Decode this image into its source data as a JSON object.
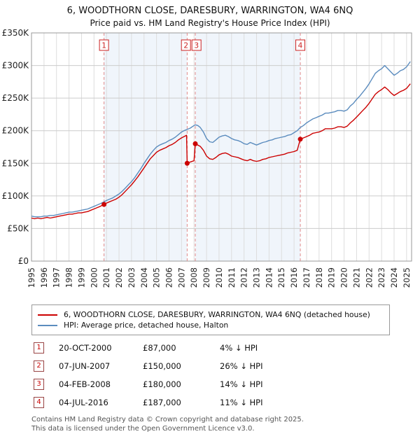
{
  "title": "6, WOODTHORN CLOSE, DARESBURY, WARRINGTON, WA4 6NQ",
  "subtitle": "Price paid vs. HM Land Registry's House Price Index (HPI)",
  "legend": [
    {
      "label": "6, WOODTHORN CLOSE, DARESBURY, WARRINGTON, WA4 6NQ (detached house)"
    },
    {
      "label": "HPI: Average price, detached house, Halton"
    }
  ],
  "footer": [
    "Contains HM Land Registry data © Crown copyright and database right 2025.",
    "This data is licensed under the Open Government Licence v3.0."
  ],
  "chart_data": {
    "type": "line",
    "units": "GBP thousands",
    "x_range": [
      1995,
      2025.4
    ],
    "ylim": [
      0,
      350
    ],
    "y_tick_values": [
      0,
      50,
      100,
      150,
      200,
      250,
      300,
      350
    ],
    "y_tick_labels": [
      "£0",
      "£50K",
      "£100K",
      "£150K",
      "£200K",
      "£250K",
      "£300K",
      "£350K"
    ],
    "x_ticks": [
      1995,
      1996,
      1997,
      1998,
      1999,
      2000,
      2001,
      2002,
      2003,
      2004,
      2005,
      2006,
      2007,
      2008,
      2009,
      2010,
      2011,
      2012,
      2013,
      2014,
      2015,
      2016,
      2017,
      2018,
      2019,
      2020,
      2021,
      2022,
      2023,
      2024,
      2025
    ],
    "grid": true,
    "band_color": "#e8eff9",
    "bands": [
      [
        2000.8,
        2007.45
      ],
      [
        2008.1,
        2016.5
      ]
    ],
    "series": [
      {
        "name": "HPI: Average price, detached house, Halton",
        "color": "#5b8cbe",
        "points": [
          [
            1995,
            69
          ],
          [
            1995.25,
            68
          ],
          [
            1995.5,
            68
          ],
          [
            1995.75,
            68
          ],
          [
            1996,
            69
          ],
          [
            1996.25,
            69
          ],
          [
            1996.5,
            70
          ],
          [
            1996.75,
            70
          ],
          [
            1997,
            71
          ],
          [
            1997.25,
            72
          ],
          [
            1997.5,
            73
          ],
          [
            1997.75,
            74
          ],
          [
            1998,
            75
          ],
          [
            1998.25,
            75
          ],
          [
            1998.5,
            76
          ],
          [
            1998.75,
            77
          ],
          [
            1999,
            78
          ],
          [
            1999.25,
            79
          ],
          [
            1999.5,
            80
          ],
          [
            1999.75,
            82
          ],
          [
            2000,
            84
          ],
          [
            2000.25,
            86
          ],
          [
            2000.5,
            88
          ],
          [
            2000.8,
            91
          ],
          [
            2001,
            93
          ],
          [
            2001.25,
            95
          ],
          [
            2001.5,
            97
          ],
          [
            2001.75,
            100
          ],
          [
            2002,
            103
          ],
          [
            2002.25,
            107
          ],
          [
            2002.5,
            112
          ],
          [
            2002.75,
            117
          ],
          [
            2003,
            122
          ],
          [
            2003.25,
            128
          ],
          [
            2003.5,
            135
          ],
          [
            2003.75,
            142
          ],
          [
            2004,
            150
          ],
          [
            2004.25,
            157
          ],
          [
            2004.5,
            164
          ],
          [
            2004.75,
            170
          ],
          [
            2005,
            175
          ],
          [
            2005.25,
            178
          ],
          [
            2005.5,
            180
          ],
          [
            2005.75,
            182
          ],
          [
            2006,
            185
          ],
          [
            2006.25,
            187
          ],
          [
            2006.5,
            190
          ],
          [
            2006.75,
            194
          ],
          [
            2007,
            198
          ],
          [
            2007.2,
            200
          ],
          [
            2007.45,
            202
          ],
          [
            2007.7,
            204
          ],
          [
            2008,
            208
          ],
          [
            2008.1,
            209
          ],
          [
            2008.3,
            208
          ],
          [
            2008.5,
            205
          ],
          [
            2008.75,
            198
          ],
          [
            2009,
            188
          ],
          [
            2009.25,
            183
          ],
          [
            2009.5,
            182
          ],
          [
            2009.75,
            186
          ],
          [
            2010,
            190
          ],
          [
            2010.25,
            192
          ],
          [
            2010.5,
            193
          ],
          [
            2010.75,
            191
          ],
          [
            2011,
            188
          ],
          [
            2011.25,
            186
          ],
          [
            2011.5,
            185
          ],
          [
            2011.75,
            183
          ],
          [
            2012,
            180
          ],
          [
            2012.25,
            179
          ],
          [
            2012.5,
            182
          ],
          [
            2012.75,
            180
          ],
          [
            2013,
            178
          ],
          [
            2013.25,
            180
          ],
          [
            2013.5,
            182
          ],
          [
            2013.75,
            183
          ],
          [
            2014,
            185
          ],
          [
            2014.25,
            186
          ],
          [
            2014.5,
            188
          ],
          [
            2014.75,
            189
          ],
          [
            2015,
            190
          ],
          [
            2015.25,
            191
          ],
          [
            2015.5,
            193
          ],
          [
            2015.75,
            194
          ],
          [
            2016,
            197
          ],
          [
            2016.25,
            200
          ],
          [
            2016.5,
            205
          ],
          [
            2016.75,
            208
          ],
          [
            2017,
            212
          ],
          [
            2017.25,
            215
          ],
          [
            2017.5,
            218
          ],
          [
            2017.75,
            220
          ],
          [
            2018,
            222
          ],
          [
            2018.25,
            224
          ],
          [
            2018.5,
            227
          ],
          [
            2018.75,
            227
          ],
          [
            2019,
            228
          ],
          [
            2019.25,
            229
          ],
          [
            2019.5,
            231
          ],
          [
            2019.75,
            231
          ],
          [
            2020,
            230
          ],
          [
            2020.25,
            232
          ],
          [
            2020.5,
            238
          ],
          [
            2020.75,
            242
          ],
          [
            2021,
            248
          ],
          [
            2021.25,
            253
          ],
          [
            2021.5,
            259
          ],
          [
            2021.75,
            265
          ],
          [
            2022,
            272
          ],
          [
            2022.25,
            280
          ],
          [
            2022.5,
            288
          ],
          [
            2022.75,
            292
          ],
          [
            2023,
            295
          ],
          [
            2023.25,
            300
          ],
          [
            2023.5,
            295
          ],
          [
            2023.75,
            290
          ],
          [
            2024,
            285
          ],
          [
            2024.25,
            288
          ],
          [
            2024.5,
            292
          ],
          [
            2024.75,
            294
          ],
          [
            2025,
            298
          ],
          [
            2025.3,
            306
          ]
        ]
      },
      {
        "name": "6, WOODTHORN CLOSE, DARESBURY, WARRINGTON, WA4 6NQ (detached house)",
        "color": "#cc0000",
        "points": [
          [
            1995,
            66
          ],
          [
            1995.25,
            65
          ],
          [
            1995.5,
            66
          ],
          [
            1995.75,
            65
          ],
          [
            1996,
            66
          ],
          [
            1996.25,
            67
          ],
          [
            1996.5,
            66
          ],
          [
            1996.75,
            67
          ],
          [
            1997,
            68
          ],
          [
            1997.25,
            69
          ],
          [
            1997.5,
            70
          ],
          [
            1997.75,
            71
          ],
          [
            1998,
            72
          ],
          [
            1998.25,
            72
          ],
          [
            1998.5,
            73
          ],
          [
            1998.75,
            74
          ],
          [
            1999,
            74
          ],
          [
            1999.25,
            75
          ],
          [
            1999.5,
            76
          ],
          [
            1999.75,
            78
          ],
          [
            2000,
            80
          ],
          [
            2000.25,
            82
          ],
          [
            2000.5,
            84
          ],
          [
            2000.8,
            87
          ],
          [
            2001,
            89
          ],
          [
            2001.25,
            91
          ],
          [
            2001.5,
            93
          ],
          [
            2001.75,
            95
          ],
          [
            2002,
            98
          ],
          [
            2002.25,
            102
          ],
          [
            2002.5,
            107
          ],
          [
            2002.75,
            112
          ],
          [
            2003,
            117
          ],
          [
            2003.25,
            123
          ],
          [
            2003.5,
            129
          ],
          [
            2003.75,
            136
          ],
          [
            2004,
            143
          ],
          [
            2004.25,
            150
          ],
          [
            2004.5,
            157
          ],
          [
            2004.75,
            162
          ],
          [
            2005,
            167
          ],
          [
            2005.25,
            170
          ],
          [
            2005.5,
            172
          ],
          [
            2005.75,
            174
          ],
          [
            2006,
            177
          ],
          [
            2006.25,
            179
          ],
          [
            2006.5,
            182
          ],
          [
            2006.75,
            186
          ],
          [
            2007,
            189
          ],
          [
            2007.2,
            191
          ],
          [
            2007.4,
            193
          ],
          [
            2007.45,
            150
          ],
          [
            2007.7,
            152
          ],
          [
            2008,
            154
          ],
          [
            2008.1,
            180
          ],
          [
            2008.3,
            178
          ],
          [
            2008.5,
            176
          ],
          [
            2008.75,
            170
          ],
          [
            2009,
            161
          ],
          [
            2009.25,
            157
          ],
          [
            2009.5,
            156
          ],
          [
            2009.75,
            159
          ],
          [
            2010,
            163
          ],
          [
            2010.25,
            165
          ],
          [
            2010.5,
            166
          ],
          [
            2010.75,
            164
          ],
          [
            2011,
            161
          ],
          [
            2011.25,
            160
          ],
          [
            2011.5,
            159
          ],
          [
            2011.75,
            157
          ],
          [
            2012,
            155
          ],
          [
            2012.25,
            154
          ],
          [
            2012.5,
            156
          ],
          [
            2012.75,
            154
          ],
          [
            2013,
            153
          ],
          [
            2013.25,
            154
          ],
          [
            2013.5,
            156
          ],
          [
            2013.75,
            157
          ],
          [
            2014,
            159
          ],
          [
            2014.25,
            160
          ],
          [
            2014.5,
            161
          ],
          [
            2014.75,
            162
          ],
          [
            2015,
            163
          ],
          [
            2015.25,
            164
          ],
          [
            2015.5,
            166
          ],
          [
            2015.75,
            167
          ],
          [
            2016,
            168
          ],
          [
            2016.25,
            170
          ],
          [
            2016.5,
            187
          ],
          [
            2016.75,
            189
          ],
          [
            2017,
            191
          ],
          [
            2017.25,
            193
          ],
          [
            2017.5,
            196
          ],
          [
            2017.75,
            197
          ],
          [
            2018,
            198
          ],
          [
            2018.25,
            200
          ],
          [
            2018.5,
            203
          ],
          [
            2018.75,
            203
          ],
          [
            2019,
            203
          ],
          [
            2019.25,
            204
          ],
          [
            2019.5,
            206
          ],
          [
            2019.75,
            206
          ],
          [
            2020,
            205
          ],
          [
            2020.25,
            207
          ],
          [
            2020.5,
            212
          ],
          [
            2020.75,
            216
          ],
          [
            2021,
            221
          ],
          [
            2021.25,
            226
          ],
          [
            2021.5,
            231
          ],
          [
            2021.75,
            236
          ],
          [
            2022,
            242
          ],
          [
            2022.25,
            249
          ],
          [
            2022.5,
            256
          ],
          [
            2022.75,
            260
          ],
          [
            2023,
            263
          ],
          [
            2023.25,
            267
          ],
          [
            2023.5,
            263
          ],
          [
            2023.75,
            258
          ],
          [
            2024,
            254
          ],
          [
            2024.25,
            257
          ],
          [
            2024.5,
            260
          ],
          [
            2024.75,
            262
          ],
          [
            2025,
            265
          ],
          [
            2025.3,
            272
          ]
        ]
      }
    ],
    "sales": [
      {
        "n": "1",
        "x": 2000.8,
        "y": 87,
        "date": "20-OCT-2000",
        "price": "£87,000",
        "pct": "4% ↓ HPI"
      },
      {
        "n": "2",
        "x": 2007.45,
        "y": 150,
        "date": "07-JUN-2007",
        "price": "£150,000",
        "pct": "26% ↓ HPI"
      },
      {
        "n": "3",
        "x": 2008.1,
        "y": 180,
        "date": "04-FEB-2008",
        "price": "£180,000",
        "pct": "14% ↓ HPI"
      },
      {
        "n": "4",
        "x": 2016.5,
        "y": 187,
        "date": "04-JUL-2016",
        "price": "£187,000",
        "pct": "11% ↓ HPI"
      }
    ]
  }
}
